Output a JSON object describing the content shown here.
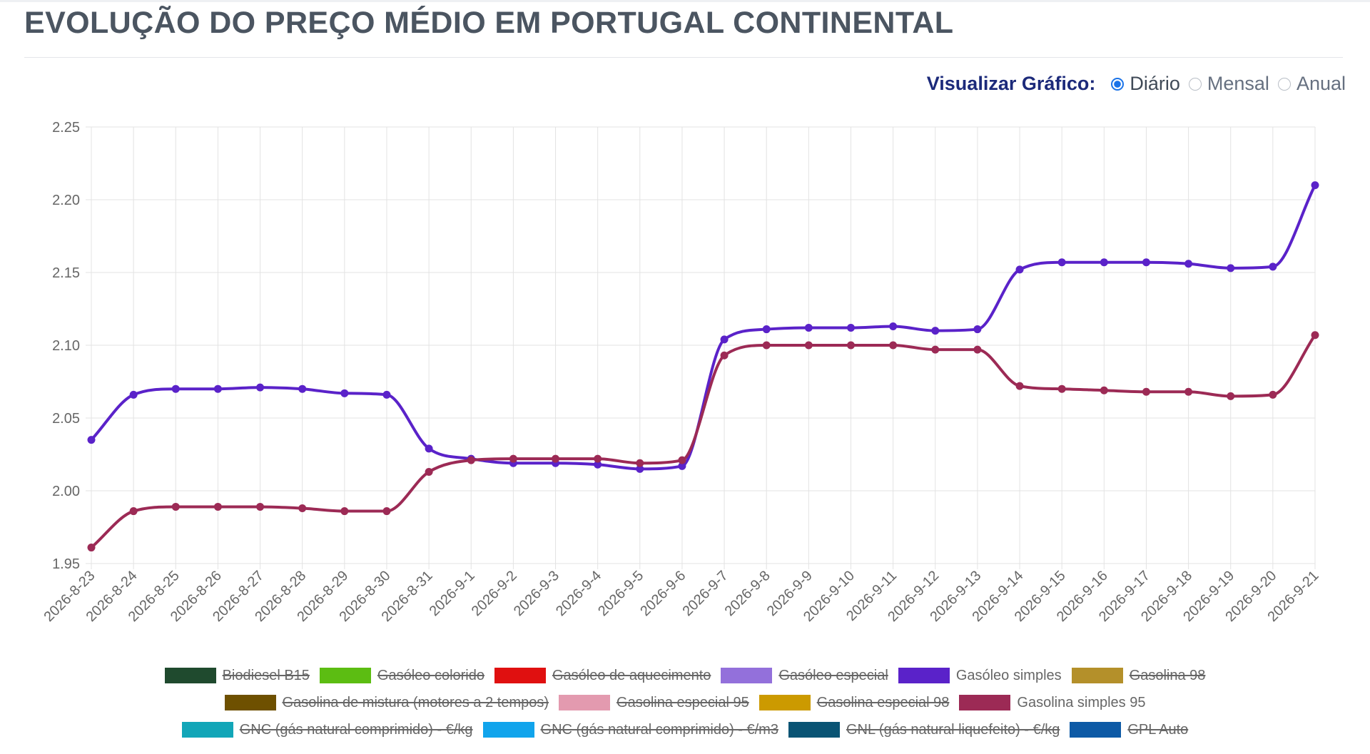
{
  "page": {
    "title": "EVOLUÇÃO DO PREÇO MÉDIO EM PORTUGAL CONTINENTAL"
  },
  "view_toggle": {
    "label": "Visualizar Gráfico:",
    "options": [
      {
        "label": "Diário",
        "selected": true
      },
      {
        "label": "Mensal",
        "selected": false
      },
      {
        "label": "Anual",
        "selected": false
      }
    ]
  },
  "chart_data": {
    "type": "line",
    "title": "",
    "xlabel": "",
    "ylabel": "",
    "ylim": [
      1.95,
      2.25
    ],
    "yticks": [
      "1.95",
      "2.00",
      "2.05",
      "2.10",
      "2.15",
      "2.20",
      "2.25"
    ],
    "grid": true,
    "curve": "smooth",
    "x": [
      "2026-8-23",
      "2026-8-24",
      "2026-8-25",
      "2026-8-26",
      "2026-8-27",
      "2026-8-28",
      "2026-8-29",
      "2026-8-30",
      "2026-8-31",
      "2026-9-1",
      "2026-9-2",
      "2026-9-3",
      "2026-9-4",
      "2026-9-5",
      "2026-9-6",
      "2026-9-7",
      "2026-9-8",
      "2026-9-9",
      "2026-9-10",
      "2026-9-11",
      "2026-9-12",
      "2026-9-13",
      "2026-9-14",
      "2026-9-15",
      "2026-9-16",
      "2026-9-17",
      "2026-9-18",
      "2026-9-19",
      "2026-9-20",
      "2026-9-21"
    ],
    "series": [
      {
        "name": "Gasóleo simples",
        "color": "#5a22c9",
        "values": [
          2.035,
          2.066,
          2.07,
          2.07,
          2.071,
          2.07,
          2.067,
          2.066,
          2.029,
          2.022,
          2.019,
          2.019,
          2.018,
          2.015,
          2.017,
          2.104,
          2.111,
          2.112,
          2.112,
          2.113,
          2.11,
          2.111,
          2.152,
          2.157,
          2.157,
          2.157,
          2.156,
          2.153,
          2.154,
          2.21
        ]
      },
      {
        "name": "Gasolina simples 95",
        "color": "#9c2a55",
        "values": [
          1.961,
          1.986,
          1.989,
          1.989,
          1.989,
          1.988,
          1.986,
          1.986,
          2.013,
          2.021,
          2.022,
          2.022,
          2.022,
          2.019,
          2.021,
          2.093,
          2.1,
          2.1,
          2.1,
          2.1,
          2.097,
          2.097,
          2.072,
          2.07,
          2.069,
          2.068,
          2.068,
          2.065,
          2.066,
          2.107
        ]
      }
    ],
    "legend_position": "bottom",
    "legend": [
      {
        "name": "Biodiesel B15",
        "color": "#1f4a2e",
        "hidden": true
      },
      {
        "name": "Gasóleo colorido",
        "color": "#5cbd12",
        "hidden": true
      },
      {
        "name": "Gasóleo de aquecimento",
        "color": "#e01010",
        "hidden": true
      },
      {
        "name": "Gasóleo especial",
        "color": "#9370db",
        "hidden": true
      },
      {
        "name": "Gasóleo simples",
        "color": "#5a22c9",
        "hidden": false
      },
      {
        "name": "Gasolina 98",
        "color": "#b4902a",
        "hidden": true
      },
      {
        "name": "Gasolina de mistura (motores a 2 tempos)",
        "color": "#6e5000",
        "hidden": true
      },
      {
        "name": "Gasolina especial 95",
        "color": "#e39aaf",
        "hidden": true
      },
      {
        "name": "Gasolina especial 98",
        "color": "#cc9a00",
        "hidden": true
      },
      {
        "name": "Gasolina simples 95",
        "color": "#9c2a55",
        "hidden": false
      },
      {
        "name": "GNC (gás natural comprimido) - €/kg",
        "color": "#12a6b8",
        "hidden": true
      },
      {
        "name": "GNC (gás natural comprimido) - €/m3",
        "color": "#11a4ec",
        "hidden": true
      },
      {
        "name": "GNL (gás natural liquefeito) - €/kg",
        "color": "#0a5474",
        "hidden": true
      },
      {
        "name": "GPL Auto",
        "color": "#0d5aa6",
        "hidden": true
      }
    ],
    "legend_rows": [
      [
        0,
        1,
        2,
        3,
        4,
        5
      ],
      [
        6,
        7,
        8,
        9
      ],
      [
        10,
        11,
        12,
        13
      ]
    ]
  }
}
